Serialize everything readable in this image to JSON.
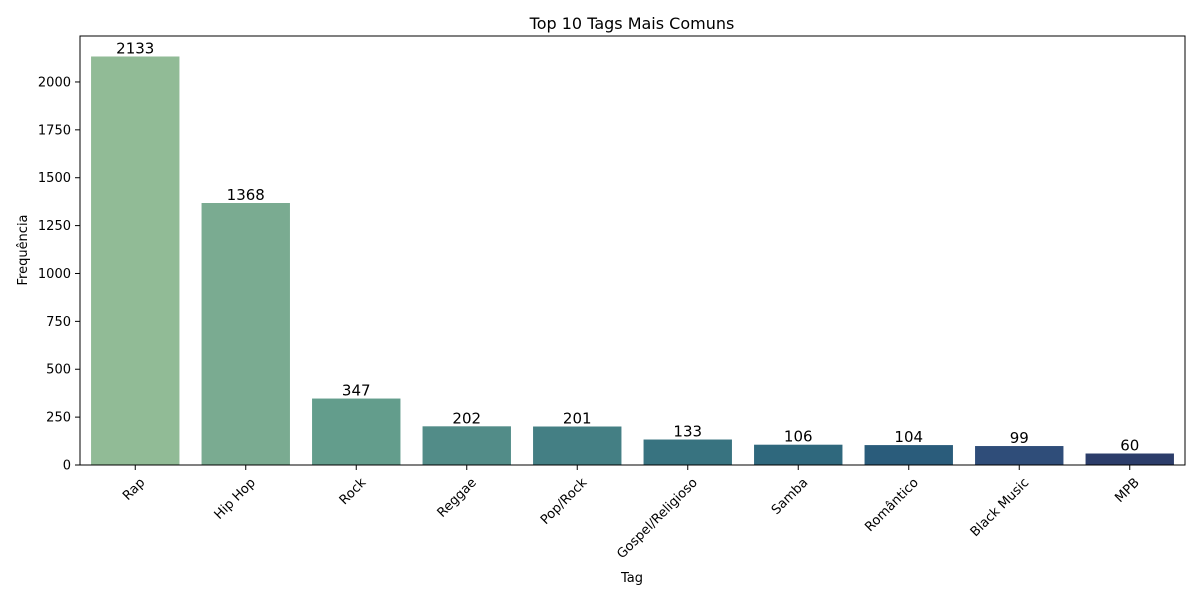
{
  "chart_data": {
    "type": "bar",
    "title": "Top 10 Tags Mais Comuns",
    "xlabel": "Tag",
    "ylabel": "Frequência",
    "categories": [
      "Rap",
      "Hip Hop",
      "Rock",
      "Reggae",
      "Pop/Rock",
      "Gospel/Religioso",
      "Samba",
      "Romântico",
      "Black Music",
      "MPB"
    ],
    "values": [
      2133,
      1368,
      347,
      202,
      201,
      133,
      106,
      104,
      99,
      60
    ],
    "data_labels": [
      "2133",
      "1368",
      "347",
      "202",
      "201",
      "133",
      "106",
      "104",
      "99",
      "60"
    ],
    "ylim": [
      0,
      2240
    ],
    "yticks": [
      0,
      250,
      500,
      750,
      1000,
      1250,
      1500,
      1750,
      2000
    ],
    "ytick_labels": [
      "0",
      "250",
      "500",
      "750",
      "1000",
      "1250",
      "1500",
      "1750",
      "2000"
    ],
    "grid": false,
    "colors": [
      "#91bb96",
      "#7aab91",
      "#639d8c",
      "#528c88",
      "#447f84",
      "#387380",
      "#2f687d",
      "#2a5c7b",
      "#2f4d79",
      "#2c3d6a"
    ]
  }
}
